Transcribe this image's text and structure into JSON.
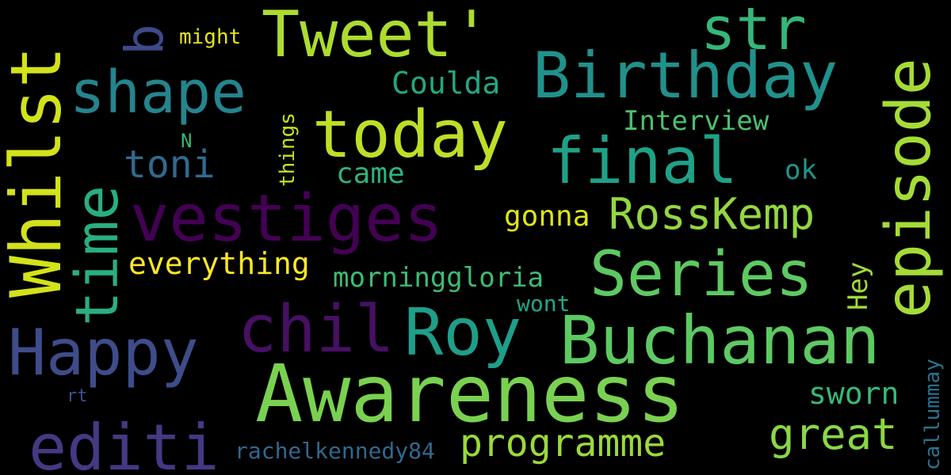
{
  "words": {
    "awareness": {
      "text": "Awareness",
      "color": "#7ad151"
    },
    "buchanan": {
      "text": "Buchanan",
      "color": "#5ec962"
    },
    "birthday": {
      "text": "Birthday",
      "color": "#21918c"
    },
    "episode": {
      "text": "episode",
      "color": "#a5db36"
    },
    "whilst": {
      "text": "Whilst",
      "color": "#d2e21b"
    },
    "series": {
      "text": "Series",
      "color": "#5ec962"
    },
    "tweet": {
      "text": "Tweet'",
      "color": "#addc30"
    },
    "today": {
      "text": "today",
      "color": "#bddf26"
    },
    "final": {
      "text": "final",
      "color": "#1fa187"
    },
    "roy": {
      "text": "Roy",
      "color": "#1f9e89"
    },
    "vestiges": {
      "text": "vestiges",
      "color": "#440154"
    },
    "chil": {
      "text": "chil",
      "color": "#471063"
    },
    "happy": {
      "text": "Happy",
      "color": "#3e4c8a"
    },
    "editi": {
      "text": "editi",
      "color": "#443983"
    },
    "shape": {
      "text": "shape",
      "color": "#25848e"
    },
    "time": {
      "text": "time",
      "color": "#29af7f"
    },
    "str": {
      "text": "str",
      "color": "#35b779"
    },
    "b": {
      "text": "b",
      "color": "#3e4989"
    },
    "rosskemp": {
      "text": "RossKemp",
      "color": "#93d741"
    },
    "great": {
      "text": "great",
      "color": "#8bd646"
    },
    "programme": {
      "text": "programme",
      "color": "#9bd93c"
    },
    "toni": {
      "text": "toni",
      "color": "#306a8e"
    },
    "everything": {
      "text": "everything",
      "color": "#fde725"
    },
    "coulda": {
      "text": "Coulda",
      "color": "#22a884"
    },
    "interview": {
      "text": "Interview",
      "color": "#4ac16d"
    },
    "gonna": {
      "text": "gonna",
      "color": "#dfe318"
    },
    "came": {
      "text": "came",
      "color": "#2fb47c"
    },
    "morninggloria": {
      "text": "morninggloria",
      "color": "#3dbc74"
    },
    "sworn": {
      "text": "sworn",
      "color": "#38b977"
    },
    "rachel": {
      "text": "rachelkennedy84",
      "color": "#31688e"
    },
    "ok": {
      "text": "ok",
      "color": "#1f948c"
    },
    "hey": {
      "text": "Hey",
      "color": "#a0da39"
    },
    "wont": {
      "text": "wont",
      "color": "#22a785"
    },
    "callummay": {
      "text": "callummay",
      "color": "#2c728e"
    },
    "things": {
      "text": "things",
      "color": "#c8e020"
    },
    "might": {
      "text": "might",
      "color": "#e5e419"
    },
    "n": {
      "text": "N",
      "color": "#35b779"
    },
    "rt": {
      "text": "rt",
      "color": "#3b528b"
    }
  }
}
